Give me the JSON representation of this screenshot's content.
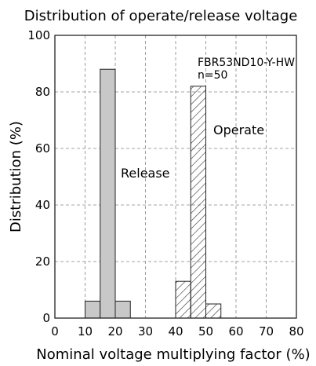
{
  "chart_data": {
    "type": "bar",
    "title": "Distribution of operate/release voltage",
    "xlabel": "Nominal voltage multiplying factor (%)",
    "ylabel": "Distribution (%)",
    "xlim": [
      0,
      80
    ],
    "ylim": [
      0,
      100
    ],
    "xticks": [
      0,
      10,
      20,
      30,
      40,
      50,
      60,
      70,
      80
    ],
    "yticks": [
      0,
      20,
      40,
      60,
      80,
      100
    ],
    "grid": "dashed",
    "annotation_lines": [
      "FBR53ND10-Y-HW",
      "n=50"
    ],
    "series": [
      {
        "name": "Release",
        "fill": "gray",
        "bins": [
          {
            "x0": 10,
            "x1": 15,
            "value": 6
          },
          {
            "x0": 15,
            "x1": 20,
            "value": 88
          },
          {
            "x0": 20,
            "x1": 25,
            "value": 6
          }
        ]
      },
      {
        "name": "Operate",
        "fill": "hatched",
        "bins": [
          {
            "x0": 40,
            "x1": 45,
            "value": 13
          },
          {
            "x0": 45,
            "x1": 50,
            "value": 82
          },
          {
            "x0": 50,
            "x1": 55,
            "value": 5
          }
        ]
      }
    ]
  }
}
